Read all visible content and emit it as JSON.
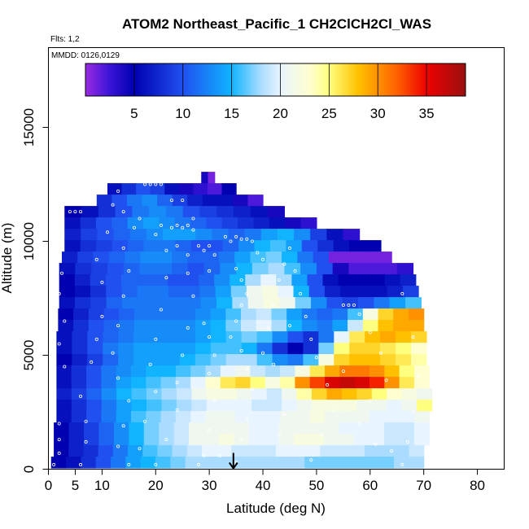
{
  "chart_data": {
    "type": "heatmap",
    "title": "ATOM2 Northeast_Pacific_1 CH2ClCH2Cl_WAS",
    "annotations": [
      "Flts: 1,2",
      "MMDD: 0126,0129"
    ],
    "xlabel": "Latitude (deg N)",
    "ylabel": "Altitude (m)",
    "xlim": [
      0,
      85
    ],
    "ylim": [
      0,
      18500
    ],
    "x_ticks": [
      0,
      5,
      10,
      20,
      30,
      40,
      50,
      60,
      70,
      80
    ],
    "y_ticks": [
      0,
      5000,
      10000,
      15000
    ],
    "y_tick_labels": [
      "0",
      "5000",
      "10000",
      "15000"
    ],
    "colorbar": {
      "range": [
        0,
        39
      ],
      "ticks": [
        5,
        10,
        15,
        20,
        25,
        30,
        35
      ],
      "stops": [
        {
          "v": 0,
          "c": "#9a2be2"
        },
        {
          "v": 2.5,
          "c": "#3a14d8"
        },
        {
          "v": 5,
          "c": "#0000b0"
        },
        {
          "v": 10,
          "c": "#2050f0"
        },
        {
          "v": 15,
          "c": "#10b4ff"
        },
        {
          "v": 18,
          "c": "#aadcff"
        },
        {
          "v": 20,
          "c": "#e8f4ff"
        },
        {
          "v": 23,
          "c": "#fffed0"
        },
        {
          "v": 25,
          "c": "#ffff80"
        },
        {
          "v": 28,
          "c": "#ffc000"
        },
        {
          "v": 32,
          "c": "#ff6000"
        },
        {
          "v": 35,
          "c": "#ee0000"
        },
        {
          "v": 39,
          "c": "#9a1010"
        }
      ]
    },
    "arrow_marker": {
      "latitude": 34.5
    },
    "rows": [
      {
        "alt": 12800,
        "lat_min": 28.5,
        "lat_max": 31,
        "values": [
          4,
          1
        ]
      },
      {
        "alt": 12300,
        "lat_min": 11,
        "lat_max": 35,
        "values": [
          6,
          8,
          10,
          9,
          6,
          4,
          3,
          2,
          5
        ]
      },
      {
        "alt": 11800,
        "lat_min": 9,
        "lat_max": 40,
        "values": [
          8,
          10,
          12,
          13,
          11,
          9,
          7,
          6,
          6,
          4,
          2
        ]
      },
      {
        "alt": 11300,
        "lat_min": 3,
        "lat_max": 44,
        "values": [
          5,
          6,
          8,
          10,
          12,
          13,
          12,
          10,
          9,
          8,
          7,
          6,
          4
        ]
      },
      {
        "alt": 10800,
        "lat_min": 3,
        "lat_max": 50,
        "values": [
          6,
          8,
          10,
          11,
          13,
          14,
          13,
          12,
          11,
          10,
          9,
          8,
          7,
          6,
          4,
          3
        ]
      },
      {
        "alt": 10300,
        "lat_min": 3,
        "lat_max": 58,
        "values": [
          7,
          9,
          10,
          11,
          12,
          13,
          14,
          14,
          13,
          12,
          11,
          12,
          14,
          15,
          13,
          9,
          6,
          3
        ]
      },
      {
        "alt": 9800,
        "lat_min": 3,
        "lat_max": 62,
        "values": [
          6,
          8,
          9,
          10,
          11,
          12,
          12,
          11,
          10,
          10,
          11,
          13,
          15,
          16,
          14,
          10,
          8,
          6,
          5,
          5
        ]
      },
      {
        "alt": 9300,
        "lat_min": 2.5,
        "lat_max": 64,
        "values": [
          7,
          9,
          10,
          11,
          12,
          13,
          13,
          12,
          11,
          11,
          12,
          14,
          16,
          17,
          15,
          12,
          10,
          1,
          1,
          1,
          1
        ]
      },
      {
        "alt": 8800,
        "lat_min": 2,
        "lat_max": 68,
        "values": [
          6,
          8,
          9,
          10,
          11,
          12,
          12,
          11,
          10,
          11,
          13,
          15,
          17,
          18,
          16,
          13,
          10,
          4,
          2,
          2,
          2,
          3
        ]
      },
      {
        "alt": 8300,
        "lat_min": 2,
        "lat_max": 68.5,
        "values": [
          5,
          7,
          9,
          10,
          11,
          11,
          11,
          10,
          10,
          11,
          13,
          15,
          18,
          20,
          18,
          14,
          10,
          6,
          5,
          5,
          5,
          6,
          7
        ]
      },
      {
        "alt": 7800,
        "lat_min": 2,
        "lat_max": 69,
        "values": [
          5,
          6,
          8,
          10,
          11,
          12,
          12,
          11,
          11,
          12,
          14,
          17,
          21,
          22,
          20,
          15,
          10,
          7,
          6,
          6,
          6,
          7,
          9
        ]
      },
      {
        "alt": 7300,
        "lat_min": 2,
        "lat_max": 69.5,
        "values": [
          6,
          8,
          9,
          11,
          12,
          12,
          12,
          12,
          12,
          13,
          15,
          18,
          21,
          22,
          21,
          17,
          13,
          10,
          9,
          10,
          12,
          14,
          16
        ]
      },
      {
        "alt": 6800,
        "lat_min": 1.8,
        "lat_max": 70,
        "values": [
          5,
          7,
          9,
          10,
          11,
          12,
          12,
          12,
          12,
          13,
          14,
          16,
          18,
          19,
          17,
          14,
          12,
          11,
          12,
          16,
          22,
          27,
          29,
          30
        ]
      },
      {
        "alt": 6300,
        "lat_min": 1.8,
        "lat_max": 70,
        "values": [
          6,
          8,
          10,
          11,
          12,
          13,
          13,
          13,
          13,
          14,
          15,
          17,
          19,
          20,
          18,
          15,
          13,
          12,
          14,
          19,
          25,
          28,
          29,
          29
        ]
      },
      {
        "alt": 5800,
        "lat_min": 1.5,
        "lat_max": 70.5,
        "values": [
          6,
          8,
          10,
          11,
          12,
          13,
          13,
          13,
          13,
          14,
          15,
          16,
          17,
          16,
          13,
          10,
          8,
          12,
          20,
          26,
          28,
          29,
          28,
          27
        ]
      },
      {
        "alt": 5300,
        "lat_min": 1.5,
        "lat_max": 70.5,
        "values": [
          6,
          8,
          10,
          12,
          13,
          14,
          14,
          14,
          14,
          15,
          16,
          16,
          15,
          12,
          8,
          5,
          8,
          17,
          25,
          27,
          27,
          26,
          25,
          23
        ]
      },
      {
        "alt": 4800,
        "lat_min": 1.5,
        "lat_max": 70.5,
        "values": [
          5,
          7,
          9,
          11,
          13,
          14,
          14,
          14,
          15,
          16,
          17,
          18,
          18,
          16,
          13,
          12,
          16,
          22,
          27,
          28,
          28,
          27,
          26,
          24
        ]
      },
      {
        "alt": 4300,
        "lat_min": 1.5,
        "lat_max": 71,
        "values": [
          6,
          8,
          10,
          12,
          13,
          14,
          15,
          15,
          16,
          17,
          18,
          20,
          21,
          19,
          18,
          19,
          22,
          26,
          29,
          31,
          31,
          30,
          28,
          25,
          23
        ]
      },
      {
        "alt": 3800,
        "lat_min": 1.5,
        "lat_max": 71,
        "values": [
          6,
          8,
          10,
          12,
          14,
          15,
          16,
          17,
          18,
          20,
          23,
          26,
          27,
          25,
          22,
          24,
          30,
          33,
          36,
          37,
          36,
          34,
          30,
          26,
          23
        ]
      },
      {
        "alt": 3300,
        "lat_min": 1.5,
        "lat_max": 71.5,
        "values": [
          7,
          9,
          11,
          13,
          15,
          16,
          17,
          18,
          19,
          21,
          22,
          22,
          21,
          20,
          19,
          21,
          24,
          27,
          29,
          28,
          27,
          25,
          23,
          22,
          21
        ]
      },
      {
        "alt": 2800,
        "lat_min": 1.5,
        "lat_max": 71.5,
        "values": [
          6,
          8,
          10,
          12,
          14,
          15,
          16,
          17,
          18,
          19,
          20,
          20,
          20,
          19,
          19,
          20,
          21,
          22,
          22,
          22,
          21,
          21,
          20,
          21,
          25
        ]
      },
      {
        "alt": 2300,
        "lat_min": 1.5,
        "lat_max": 71,
        "values": [
          6,
          8,
          10,
          12,
          14,
          16,
          17,
          18,
          19,
          20,
          21,
          21,
          20,
          20,
          20,
          21,
          21,
          22,
          21,
          21,
          21,
          20,
          20,
          20,
          21
        ]
      },
      {
        "alt": 1800,
        "lat_min": 1,
        "lat_max": 71,
        "values": [
          5,
          7,
          9,
          11,
          13,
          15,
          17,
          18,
          19,
          21,
          21,
          21,
          21,
          20,
          20,
          21,
          21,
          21,
          21,
          20,
          20,
          20,
          19,
          19,
          20
        ]
      },
      {
        "alt": 1300,
        "lat_min": 1,
        "lat_max": 71,
        "values": [
          5,
          7,
          9,
          11,
          13,
          15,
          17,
          18,
          19,
          21,
          21,
          22,
          21,
          20,
          20,
          21,
          22,
          22,
          21,
          21,
          20,
          20,
          19,
          19,
          20
        ]
      },
      {
        "alt": 800,
        "lat_min": 1,
        "lat_max": 70,
        "values": [
          5,
          7,
          8,
          10,
          12,
          14,
          16,
          17,
          18,
          19,
          20,
          20,
          19,
          19,
          19,
          20,
          20,
          20,
          19,
          19,
          19,
          18,
          18,
          18,
          19
        ]
      },
      {
        "alt": 300,
        "lat_min": 0.5,
        "lat_max": 70,
        "values": [
          5,
          6,
          8,
          10,
          12,
          14,
          15,
          16,
          17,
          18,
          18,
          18,
          18,
          18,
          18,
          18,
          18,
          17,
          17,
          17,
          17,
          17,
          17,
          18,
          18
        ]
      }
    ],
    "sample_points": [
      [
        1,
        200
      ],
      [
        2,
        700
      ],
      [
        2,
        1300
      ],
      [
        2,
        2000
      ],
      [
        3,
        4500
      ],
      [
        2,
        5500
      ],
      [
        3,
        6500
      ],
      [
        2,
        7700
      ],
      [
        2.5,
        8600
      ],
      [
        2,
        9300
      ],
      [
        4,
        11300
      ],
      [
        5,
        11300
      ],
      [
        6,
        11300
      ],
      [
        6,
        200
      ],
      [
        7,
        1200
      ],
      [
        7,
        2100
      ],
      [
        6,
        3200
      ],
      [
        8,
        4700
      ],
      [
        9,
        5700
      ],
      [
        10,
        6700
      ],
      [
        10,
        8200
      ],
      [
        9,
        9200
      ],
      [
        11,
        10400
      ],
      [
        12,
        11600
      ],
      [
        13,
        12200
      ],
      [
        14,
        11300
      ],
      [
        17,
        11000
      ],
      [
        16,
        10600
      ],
      [
        14,
        9700
      ],
      [
        15,
        8700
      ],
      [
        14,
        7600
      ],
      [
        13,
        6300
      ],
      [
        12,
        5100
      ],
      [
        13,
        4000
      ],
      [
        15,
        3000
      ],
      [
        14,
        1900
      ],
      [
        13,
        1000
      ],
      [
        15,
        200
      ],
      [
        17,
        900
      ],
      [
        18,
        2100
      ],
      [
        20,
        3400
      ],
      [
        19,
        4600
      ],
      [
        20,
        5700
      ],
      [
        21,
        7000
      ],
      [
        22,
        8400
      ],
      [
        22,
        9600
      ],
      [
        20,
        10300
      ],
      [
        21,
        10700
      ],
      [
        23,
        10600
      ],
      [
        24,
        10700
      ],
      [
        25,
        10600
      ],
      [
        26,
        10700
      ],
      [
        27,
        10500
      ],
      [
        24,
        9800
      ],
      [
        26,
        9400
      ],
      [
        26,
        8600
      ],
      [
        27,
        7600
      ],
      [
        26,
        6200
      ],
      [
        25,
        5000
      ],
      [
        24,
        3800
      ],
      [
        24,
        2600
      ],
      [
        22,
        1300
      ],
      [
        20,
        200
      ],
      [
        18,
        12500
      ],
      [
        19,
        12500
      ],
      [
        20,
        12500
      ],
      [
        21,
        12500
      ],
      [
        23,
        11800
      ],
      [
        25,
        11800
      ],
      [
        27,
        11000
      ],
      [
        28,
        9800
      ],
      [
        29,
        9600
      ],
      [
        30,
        9800
      ],
      [
        31,
        9400
      ],
      [
        30,
        8700
      ],
      [
        29,
        6400
      ],
      [
        30,
        5800
      ],
      [
        31,
        5000
      ],
      [
        30,
        4200
      ],
      [
        31,
        3000
      ],
      [
        30,
        1700
      ],
      [
        29,
        600
      ],
      [
        28,
        200
      ],
      [
        33,
        10200
      ],
      [
        34,
        10000
      ],
      [
        35,
        10200
      ],
      [
        36,
        10100
      ],
      [
        37,
        10100
      ],
      [
        38,
        10000
      ],
      [
        39,
        9500
      ],
      [
        40,
        9200
      ],
      [
        35,
        8800
      ],
      [
        36,
        8300
      ],
      [
        37,
        7700
      ],
      [
        36,
        7200
      ],
      [
        35,
        6500
      ],
      [
        34,
        5800
      ],
      [
        36,
        5200
      ],
      [
        37,
        4400
      ],
      [
        38,
        3500
      ],
      [
        37,
        2200
      ],
      [
        36,
        1300
      ],
      [
        35,
        300
      ],
      [
        40,
        5100
      ],
      [
        41,
        6200
      ],
      [
        42,
        7200
      ],
      [
        43,
        8300
      ],
      [
        44,
        9000
      ],
      [
        45,
        9700
      ],
      [
        46,
        8700
      ],
      [
        47,
        7700
      ],
      [
        48,
        6700
      ],
      [
        49,
        5700
      ],
      [
        50,
        4900
      ],
      [
        52,
        3700
      ],
      [
        53,
        2600
      ],
      [
        51,
        1500
      ],
      [
        49,
        400
      ],
      [
        55,
        7200
      ],
      [
        56,
        7200
      ],
      [
        57,
        7200
      ],
      [
        58,
        6800
      ],
      [
        60,
        6000
      ],
      [
        62,
        5100
      ],
      [
        63,
        3900
      ],
      [
        60,
        3000
      ],
      [
        58,
        2000
      ],
      [
        61,
        1100
      ],
      [
        64,
        800
      ],
      [
        66,
        7700
      ],
      [
        68,
        5800
      ],
      [
        69,
        4100
      ],
      [
        68,
        2500
      ],
      [
        67,
        1200
      ],
      [
        66,
        200
      ],
      [
        55,
        4300
      ],
      [
        45,
        6300
      ],
      [
        42,
        4600
      ],
      [
        44,
        2400
      ],
      [
        43,
        1500
      ],
      [
        32,
        600
      ]
    ]
  }
}
